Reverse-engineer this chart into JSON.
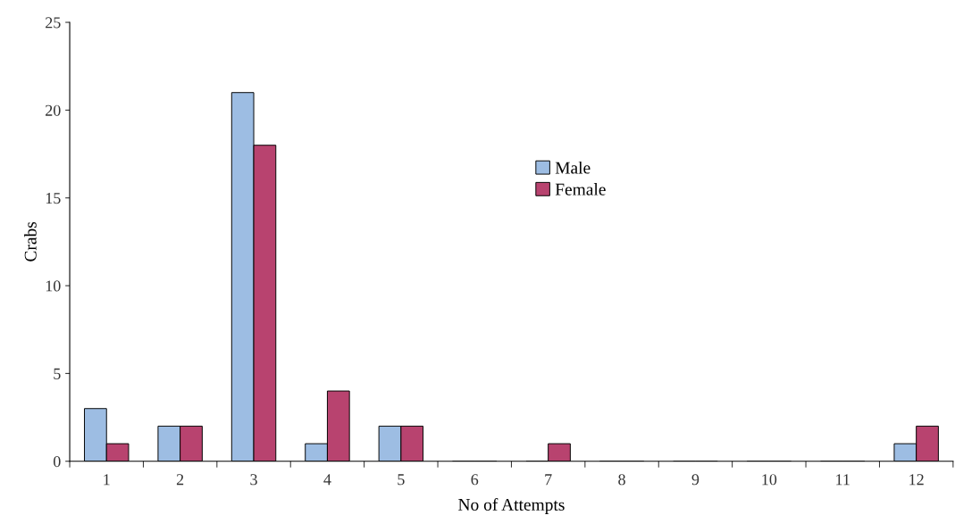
{
  "chart_data": {
    "type": "bar",
    "xlabel": "No of Attempts",
    "ylabel": "Crabs",
    "categories": [
      "1",
      "2",
      "3",
      "4",
      "5",
      "6",
      "7",
      "8",
      "9",
      "10",
      "11",
      "12"
    ],
    "series": [
      {
        "name": "Male",
        "color": "#9dbde3",
        "values": [
          3,
          2,
          21,
          1,
          2,
          0,
          0,
          0,
          0,
          0,
          0,
          1
        ]
      },
      {
        "name": "Female",
        "color": "#b8436f",
        "values": [
          1,
          2,
          18,
          4,
          2,
          0,
          1,
          0,
          0,
          0,
          0,
          2
        ]
      }
    ],
    "ylim": [
      0,
      25
    ],
    "yticks": [
      0,
      5,
      10,
      15,
      20,
      25
    ],
    "grid": false,
    "legend": "top"
  }
}
